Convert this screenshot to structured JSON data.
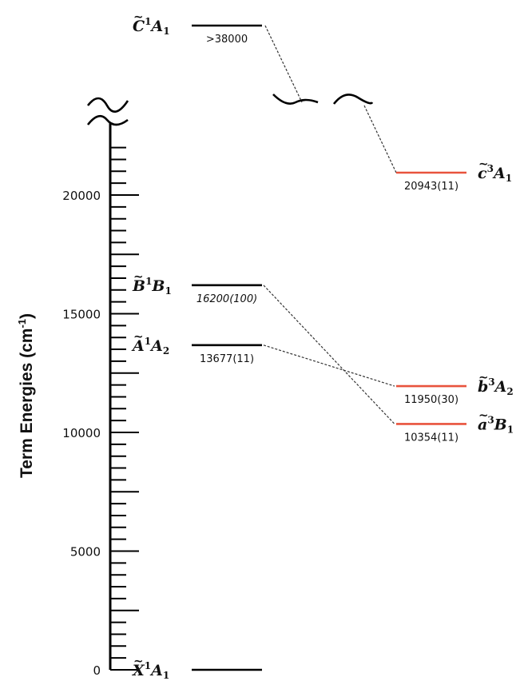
{
  "chart_data": {
    "type": "energy_level_diagram",
    "ylabel": "Term Energies (cm-1)",
    "ylabel_main": "Term Energies (cm",
    "ylabel_sup": "-1",
    "ylabel_close": ")",
    "ylim": [
      0,
      22000
    ],
    "yticks": [
      0,
      5000,
      10000,
      15000,
      20000
    ],
    "ytick_labels": [
      "0",
      "5000",
      "10000",
      "15000",
      "20000"
    ],
    "minor_tick_step": 500,
    "axis_break": true,
    "levels": [
      {
        "id": "X1A1",
        "letter": "X",
        "mult": "1",
        "sym": "A",
        "sub": "1",
        "energy": 0,
        "value_label": "",
        "column": "singlet",
        "color": "#000000"
      },
      {
        "id": "A1A2",
        "letter": "A",
        "mult": "1",
        "sym": "A",
        "sub": "2",
        "energy": 13677,
        "value_label": "13677(11)",
        "column": "singlet",
        "color": "#000000"
      },
      {
        "id": "B1B1",
        "letter": "B",
        "mult": "1",
        "sym": "B",
        "sub": "1",
        "energy": 16200,
        "value_label": "16200(100)",
        "italic_value": true,
        "column": "singlet",
        "color": "#000000"
      },
      {
        "id": "C1A1",
        "letter": "C",
        "mult": "1",
        "sym": "A",
        "sub": "1",
        "energy": ">38000",
        "value_label": ">38000",
        "column": "singlet",
        "color": "#000000",
        "above_break": true
      },
      {
        "id": "a3B1",
        "letter": "a",
        "mult": "3",
        "sym": "B",
        "sub": "1",
        "energy": 10354,
        "value_label": "10354(11)",
        "column": "triplet",
        "color": "#e8533d"
      },
      {
        "id": "b3A2",
        "letter": "b",
        "mult": "3",
        "sym": "A",
        "sub": "2",
        "energy": 11950,
        "value_label": "11950(30)",
        "column": "triplet",
        "color": "#e8533d"
      },
      {
        "id": "c3A1",
        "letter": "c",
        "mult": "3",
        "sym": "A",
        "sub": "1",
        "energy": 20943,
        "value_label": "20943(11)",
        "column": "triplet",
        "color": "#e8533d"
      }
    ],
    "correlations": [
      {
        "from": "A1A2",
        "to": "b3A2"
      },
      {
        "from": "B1B1",
        "to": "a3B1"
      },
      {
        "from": "C1A1",
        "to": "c3A1"
      }
    ]
  }
}
